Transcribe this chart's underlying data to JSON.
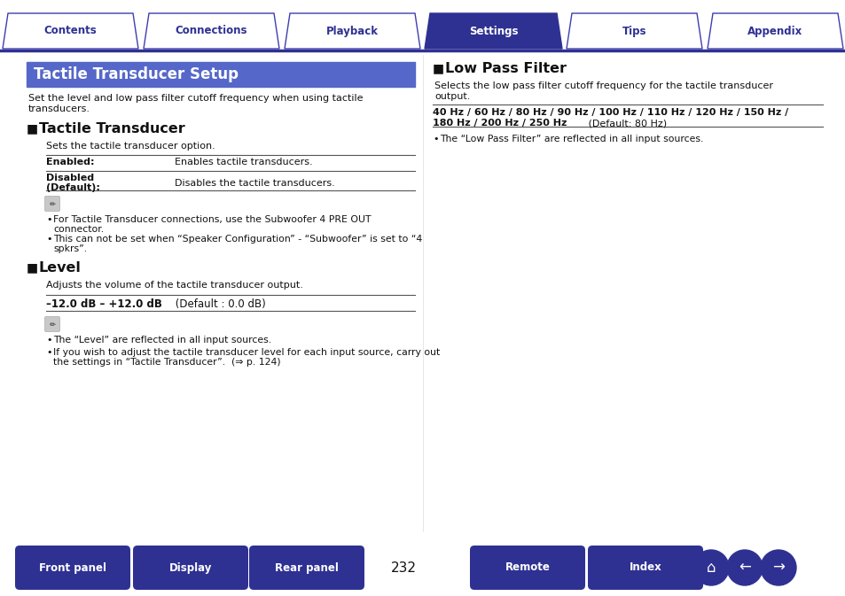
{
  "bg_color": "#ffffff",
  "tab_names": [
    "Contents",
    "Connections",
    "Playback",
    "Settings",
    "Tips",
    "Appendix"
  ],
  "active_tab": 3,
  "tab_color_active": "#2e3192",
  "tab_color_inactive": "#ffffff",
  "tab_border_color": "#3d3db0",
  "tab_text_active": "#ffffff",
  "tab_text_inactive": "#2e3192",
  "header_line_color": "#2e3192",
  "title_box_color": "#5567c8",
  "title_text": "Tactile Transducer Setup",
  "title_text_color": "#ffffff",
  "page_number": "232",
  "bottom_buttons": [
    "Front panel",
    "Display",
    "Rear panel",
    "Remote",
    "Index"
  ],
  "bottom_btn_color": "#2e3192"
}
